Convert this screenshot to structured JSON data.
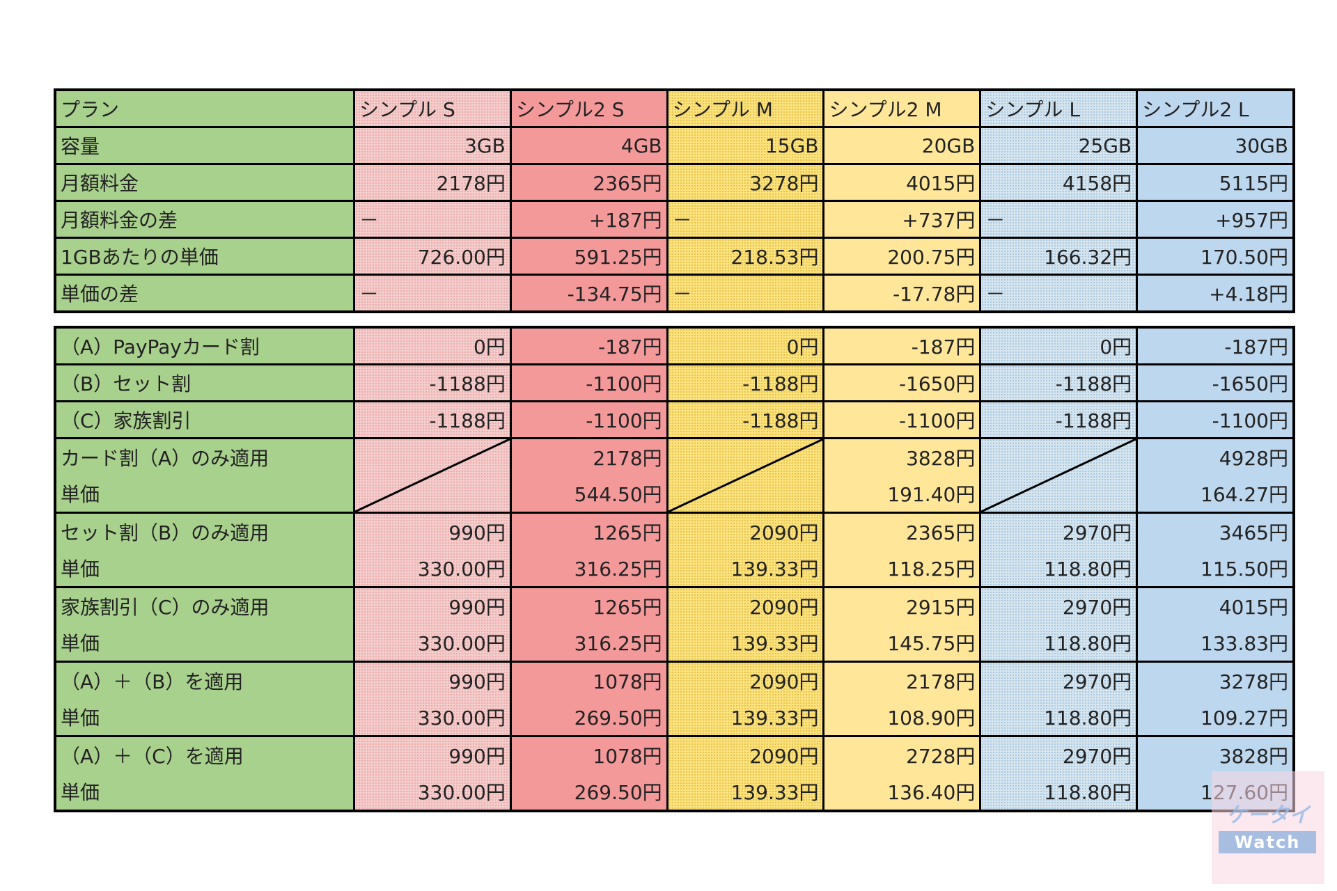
{
  "table1": {
    "header": [
      "プラン",
      "シンプル S",
      "シンプル2 S",
      "シンプル M",
      "シンプル2 M",
      "シンプル L",
      "シンプル2 L"
    ],
    "rows": [
      [
        "容量",
        "3GB",
        "4GB",
        "15GB",
        "20GB",
        "25GB",
        "30GB"
      ],
      [
        "月額料金",
        "2178円",
        "2365円",
        "3278円",
        "4015円",
        "4158円",
        "5115円"
      ],
      [
        "月額料金の差",
        "－",
        "+187円",
        "－",
        "+737円",
        "－",
        "+957円"
      ],
      [
        "1GBあたりの単価",
        "726.00円",
        "591.25円",
        "218.53円",
        "200.75円",
        "166.32円",
        "170.50円"
      ],
      [
        "単価の差",
        "－",
        "-134.75円",
        "－",
        "-17.78円",
        "－",
        "+4.18円"
      ]
    ]
  },
  "table2": {
    "rows": [
      [
        "（A）PayPayカード割",
        "0円",
        "-187円",
        "0円",
        "-187円",
        "0円",
        "-187円"
      ],
      [
        "（B）セット割",
        "-1188円",
        "-1100円",
        "-1188円",
        "-1650円",
        "-1188円",
        "-1650円"
      ],
      [
        "（C）家族割引",
        "-1188円",
        "-1100円",
        "-1188円",
        "-1100円",
        "-1188円",
        "-1100円"
      ]
    ],
    "pairs": [
      {
        "labels": [
          "カード割（A）のみ適用",
          "単価"
        ],
        "cells": [
          null,
          [
            "2178円",
            "544.50円"
          ],
          null,
          [
            "3828円",
            "191.40円"
          ],
          null,
          [
            "4928円",
            "164.27円"
          ]
        ]
      },
      {
        "labels": [
          "セット割（B）のみ適用",
          "単価"
        ],
        "cells": [
          [
            "990円",
            "330.00円"
          ],
          [
            "1265円",
            "316.25円"
          ],
          [
            "2090円",
            "139.33円"
          ],
          [
            "2365円",
            "118.25円"
          ],
          [
            "2970円",
            "118.80円"
          ],
          [
            "3465円",
            "115.50円"
          ]
        ]
      },
      {
        "labels": [
          "家族割引（C）のみ適用",
          "単価"
        ],
        "cells": [
          [
            "990円",
            "330.00円"
          ],
          [
            "1265円",
            "316.25円"
          ],
          [
            "2090円",
            "139.33円"
          ],
          [
            "2915円",
            "145.75円"
          ],
          [
            "2970円",
            "118.80円"
          ],
          [
            "4015円",
            "133.83円"
          ]
        ]
      },
      {
        "labels": [
          "（A）＋（B）を適用",
          "単価"
        ],
        "cells": [
          [
            "990円",
            "330.00円"
          ],
          [
            "1078円",
            "269.50円"
          ],
          [
            "2090円",
            "139.33円"
          ],
          [
            "2178円",
            "108.90円"
          ],
          [
            "2970円",
            "118.80円"
          ],
          [
            "3278円",
            "109.27円"
          ]
        ]
      },
      {
        "labels": [
          "（A）＋（C）を適用",
          "単価"
        ],
        "cells": [
          [
            "990円",
            "330.00円"
          ],
          [
            "1078円",
            "269.50円"
          ],
          [
            "2090円",
            "139.33円"
          ],
          [
            "2728円",
            "136.40円"
          ],
          [
            "2970円",
            "118.80円"
          ],
          [
            "3828円",
            "127.60円"
          ]
        ]
      }
    ]
  },
  "watermark": {
    "logo": "ケータイ",
    "label": "Watch"
  }
}
